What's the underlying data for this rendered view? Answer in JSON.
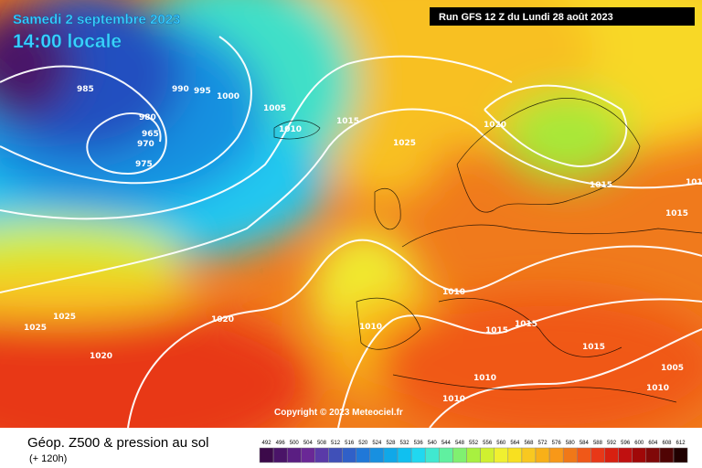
{
  "header": {
    "title": "Samedi 2 septembre 2023",
    "time": "14:00 locale",
    "run": "Run GFS 12 Z du Lundi 28 août 2023"
  },
  "map": {
    "isobar_labels": [
      985,
      990,
      995,
      1000,
      965,
      980,
      970,
      975,
      1005,
      1010,
      1015,
      1025,
      1020,
      1015,
      1015,
      1015,
      1010,
      1010,
      1015,
      1015,
      1015,
      1010,
      1010,
      1010,
      1005,
      1025,
      1025,
      1020,
      1020
    ]
  },
  "copyright": "Copyright © 2023 Meteociel.fr",
  "legend": {
    "title": "Géop. Z500 & pression au sol",
    "lead": "(+ 120h)",
    "scale": [
      492,
      496,
      500,
      504,
      508,
      512,
      516,
      520,
      524,
      528,
      532,
      536,
      540,
      544,
      548,
      552,
      556,
      560,
      564,
      568,
      572,
      576,
      580,
      584,
      588,
      592,
      596,
      600,
      604,
      608,
      612
    ],
    "colors": [
      "#3c0a4a",
      "#4a1468",
      "#5a1e82",
      "#6a2896",
      "#5a3aa8",
      "#4050b8",
      "#3060c8",
      "#2078d8",
      "#1890e0",
      "#10a8e8",
      "#10c0f0",
      "#20d8f0",
      "#40e8d0",
      "#60f0a0",
      "#80f070",
      "#a8f040",
      "#d0f030",
      "#f0f030",
      "#f8e020",
      "#f8c820",
      "#f8b018",
      "#f89818",
      "#f07818",
      "#f05818",
      "#e83818",
      "#d82010",
      "#c01010",
      "#a00808",
      "#800808",
      "#500404",
      "#200000"
    ]
  }
}
